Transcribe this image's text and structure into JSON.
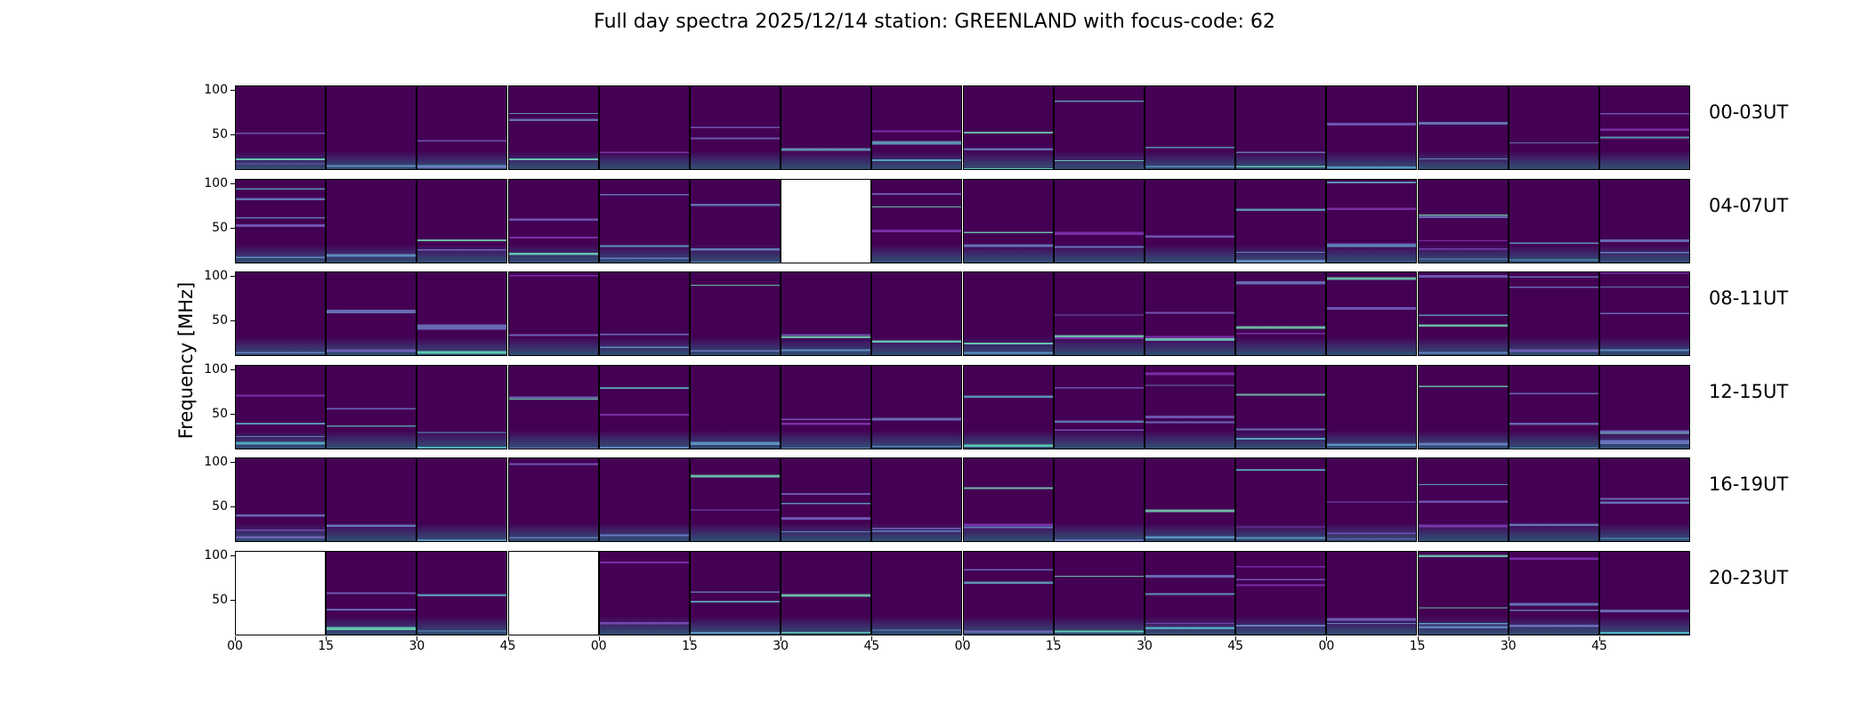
{
  "chart_data": {
    "type": "heatmap",
    "title": "Full day spectra 2025/12/14 station: GREENLAND with focus-code: 62",
    "ylabel": "Frequency [MHz]",
    "xlabel": "",
    "yticks": [
      100,
      50
    ],
    "ylim": [
      10,
      105
    ],
    "colormap": "viridis",
    "xtick_labels": [
      "00",
      "15",
      "30",
      "45",
      "00",
      "15",
      "30",
      "45",
      "00",
      "15",
      "30",
      "45",
      "00",
      "15",
      "30",
      "45"
    ],
    "tiles_per_row": 16,
    "tile_minutes": 15,
    "rows": [
      {
        "label": "00-03UT",
        "missing": []
      },
      {
        "label": "04-07UT",
        "missing": [
          6
        ]
      },
      {
        "label": "08-11UT",
        "missing": []
      },
      {
        "label": "12-15UT",
        "missing": []
      },
      {
        "label": "16-19UT",
        "missing": []
      },
      {
        "label": "20-23UT",
        "missing": [
          0,
          3
        ]
      }
    ]
  }
}
